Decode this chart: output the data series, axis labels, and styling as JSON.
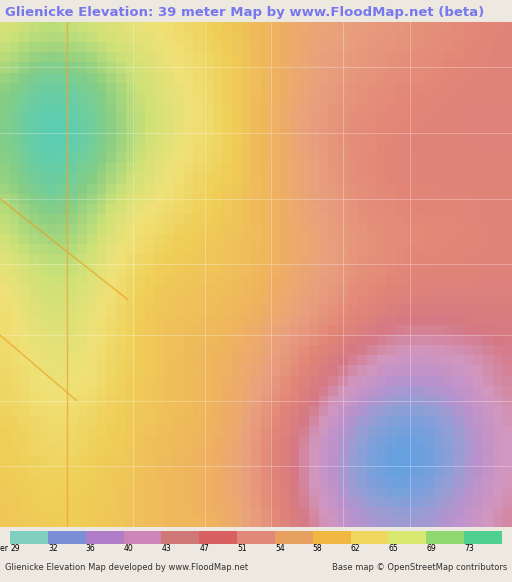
{
  "title": "Glienicke Elevation: 39 meter Map by www.FloodMap.net (beta)",
  "title_color": "#7777ee",
  "title_fontsize": 9.5,
  "bg_color": "#ede8e0",
  "colorbar_ticks": [
    29,
    32,
    36,
    40,
    43,
    47,
    51,
    54,
    58,
    62,
    65,
    69,
    73
  ],
  "colorbar_colors": [
    "#7ecfc0",
    "#7b8fd4",
    "#b07ec8",
    "#cc85b8",
    "#d07878",
    "#d86060",
    "#e08878",
    "#e8a060",
    "#f0b840",
    "#f0d860",
    "#d8e870",
    "#90d870",
    "#50d090"
  ],
  "footer_left": "Glienicke Elevation Map developed by www.FloodMap.net",
  "footer_right": "Base map © OpenStreetMap contributors",
  "footer_fontsize": 6.0,
  "fig_width": 5.12,
  "fig_height": 5.82,
  "elevation_grid": {
    "rows": 50,
    "cols": 53,
    "seed": 123,
    "dominant_purple_right": true,
    "warm_upper_left": true,
    "blue_lower_right": true
  }
}
